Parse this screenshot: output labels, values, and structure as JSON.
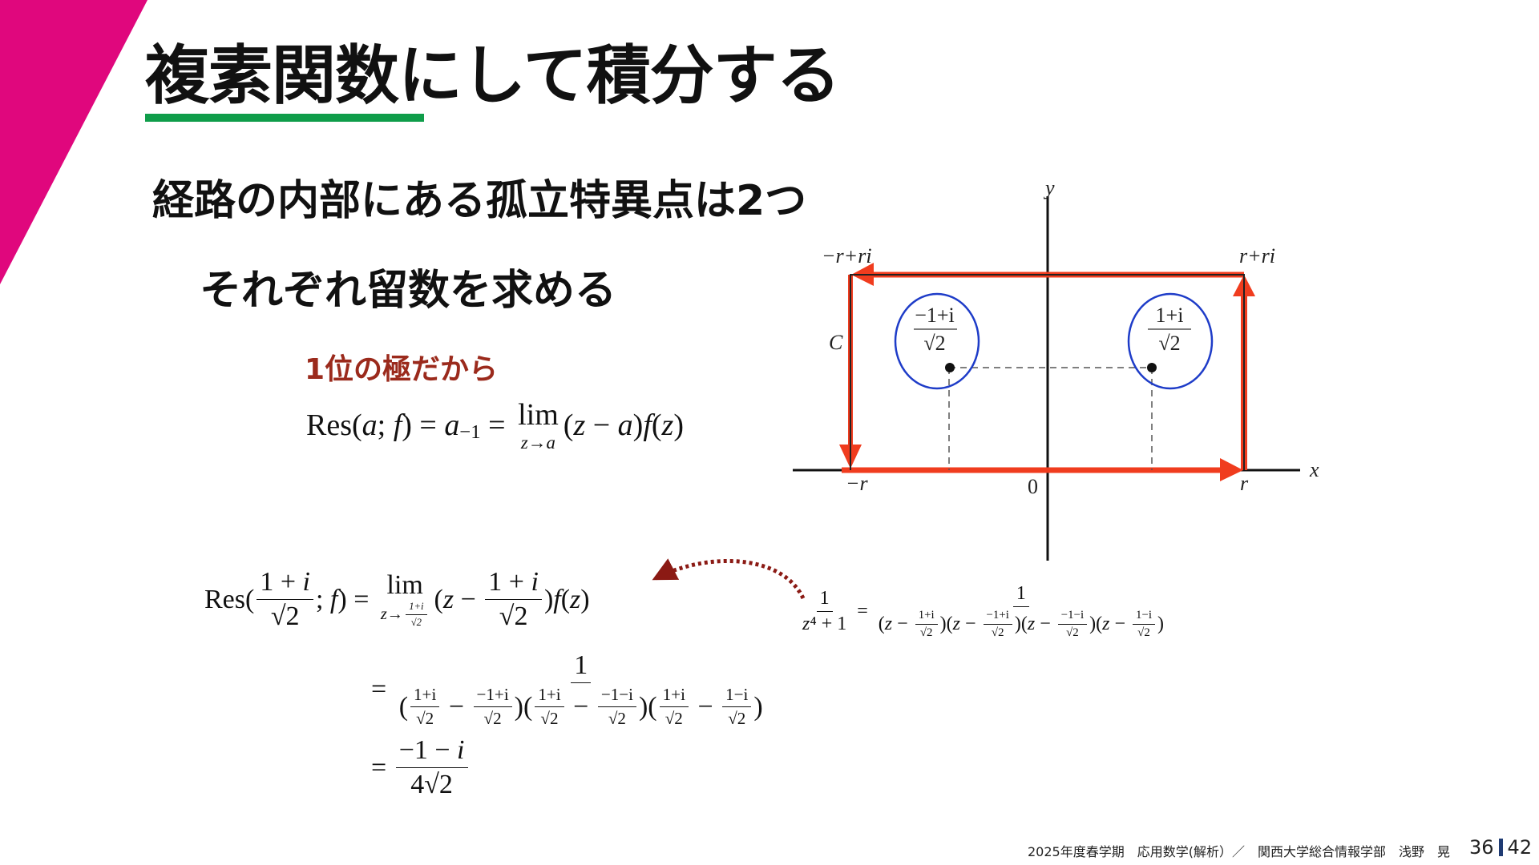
{
  "colors": {
    "accent": "#e0077d",
    "underline": "#0f9d4a",
    "note": "#9b2a1c",
    "contour": "#f03c1e",
    "circle": "#1e3cc8",
    "dotted_arrow": "#8b1a14"
  },
  "slide": {
    "title": "複素関数にして積分する",
    "line1": "経路の内部にある孤立特異点は2つ",
    "line2": "それぞれ留数を求める",
    "note": "1位の極だから"
  },
  "res_def": [
    "Res(",
    {
      "it": "a"
    },
    ";",
    {
      "it": " f"
    },
    ") = ",
    {
      "it": "a"
    },
    {
      "sub": "−1"
    },
    " = ",
    {
      "lim": "lim",
      "under": [
        "z→a"
      ]
    },
    "(",
    {
      "it": "z"
    },
    " − ",
    {
      "it": "a"
    },
    ")",
    {
      "it": "f"
    },
    "(",
    {
      "it": "z"
    },
    ")"
  ],
  "diagram": {
    "labels": {
      "y": "y",
      "x": "x",
      "origin": "0",
      "neg_r": "−r",
      "r": "r",
      "top_left": "−r+ri",
      "top_right": "r+ri",
      "contour": "C"
    },
    "poles": [
      {
        "num": "−1+i",
        "den": "√2"
      },
      {
        "num": "1+i",
        "den": "√2"
      }
    ]
  },
  "bottom": {
    "line1": [
      "Res(",
      {
        "n": [
          "1 + ",
          {
            "it": "i"
          }
        ],
        "d": [
          "√2"
        ]
      },
      "; ",
      {
        "it": "f"
      },
      ") = ",
      {
        "lim": "lim",
        "under": [
          "z→",
          {
            "n": [
              "1+i"
            ],
            "d": [
              "√2"
            ],
            "s": true
          }
        ]
      },
      "(",
      {
        "it": "z"
      },
      " − ",
      {
        "n": [
          "1 + ",
          {
            "it": "i"
          }
        ],
        "d": [
          "√2"
        ]
      },
      ")",
      {
        "it": "f"
      },
      "(",
      {
        "it": "z"
      },
      ")"
    ],
    "line2": [
      "= ",
      {
        "n": [
          "1"
        ],
        "d": [
          "(",
          {
            "n": [
              "1+i"
            ],
            "d": [
              "√2"
            ],
            "s": true
          },
          " − ",
          {
            "n": [
              "−1+i"
            ],
            "d": [
              "√2"
            ],
            "s": true
          },
          ")(",
          {
            "n": [
              "1+i"
            ],
            "d": [
              "√2"
            ],
            "s": true
          },
          " − ",
          {
            "n": [
              "−1−i"
            ],
            "d": [
              "√2"
            ],
            "s": true
          },
          ")(",
          {
            "n": [
              "1+i"
            ],
            "d": [
              "√2"
            ],
            "s": true
          },
          " − ",
          {
            "n": [
              "1−i"
            ],
            "d": [
              "√2"
            ],
            "s": true
          },
          ")"
        ]
      }
    ],
    "line3": [
      "= ",
      {
        "n": [
          "−1 − ",
          {
            "it": "i"
          }
        ],
        "d": [
          "4√2"
        ]
      }
    ],
    "factorization": [
      {
        "n": [
          "1"
        ],
        "d": [
          {
            "it": "z"
          },
          "⁴ + 1"
        ]
      },
      " = ",
      {
        "n": [
          "1"
        ],
        "d": [
          "(",
          {
            "it": "z"
          },
          " − ",
          {
            "n": [
              "1+i"
            ],
            "d": [
              "√2"
            ],
            "s": true
          },
          ")(",
          {
            "it": "z"
          },
          " − ",
          {
            "n": [
              "−1+i"
            ],
            "d": [
              "√2"
            ],
            "s": true
          },
          ")(",
          {
            "it": "z"
          },
          " − ",
          {
            "n": [
              "−1−i"
            ],
            "d": [
              "√2"
            ],
            "s": true
          },
          ")(",
          {
            "it": "z"
          },
          " − ",
          {
            "n": [
              "1−i"
            ],
            "d": [
              "√2"
            ],
            "s": true
          },
          ")"
        ]
      }
    ]
  },
  "footer": {
    "course": "2025年度春学期　応用数学(解析）／　関西大学総合情報学部　浅野　晃",
    "page": "36",
    "total": "42"
  }
}
